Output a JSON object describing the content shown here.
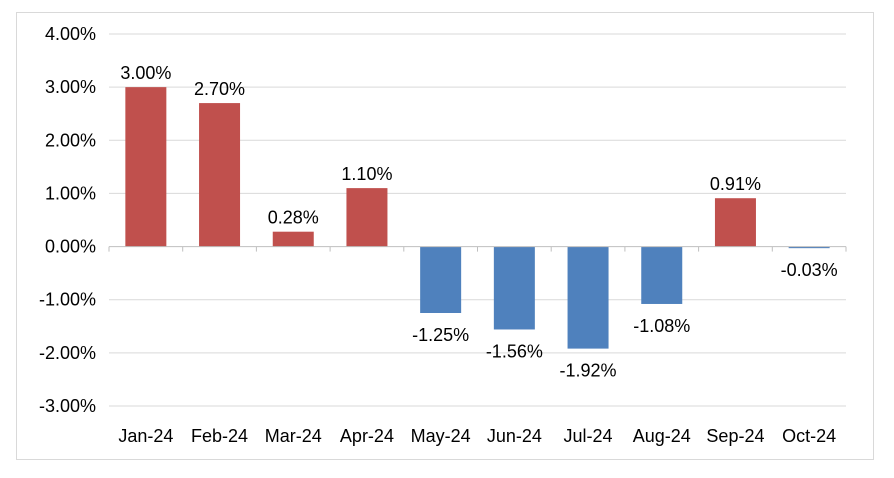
{
  "chart_data": {
    "type": "bar",
    "categories": [
      "Jan-24",
      "Feb-24",
      "Mar-24",
      "Apr-24",
      "May-24",
      "Jun-24",
      "Jul-24",
      "Aug-24",
      "Sep-24",
      "Oct-24"
    ],
    "values": [
      3.0,
      2.7,
      0.28,
      1.1,
      -1.25,
      -1.56,
      -1.92,
      -1.08,
      0.91,
      -0.03
    ],
    "data_labels": [
      "3.00%",
      "2.70%",
      "0.28%",
      "1.10%",
      "-1.25%",
      "-1.56%",
      "-1.92%",
      "-1.08%",
      "0.91%",
      "-0.03%"
    ],
    "y_ticks": [
      4,
      3,
      2,
      1,
      0,
      -1,
      -2,
      -3
    ],
    "y_tick_labels": [
      "4.00%",
      "3.00%",
      "2.00%",
      "1.00%",
      "0.00%",
      "-1.00%",
      "-2.00%",
      "-3.00%"
    ],
    "ylim": [
      -3,
      4
    ],
    "grid": true,
    "legend": "none",
    "title": "",
    "xlabel": "",
    "ylabel": "",
    "colors": {
      "positive": "#c0504d",
      "negative": "#4f81bd",
      "grid": "#d9d9d9",
      "axis": "#bfbfbf"
    }
  }
}
